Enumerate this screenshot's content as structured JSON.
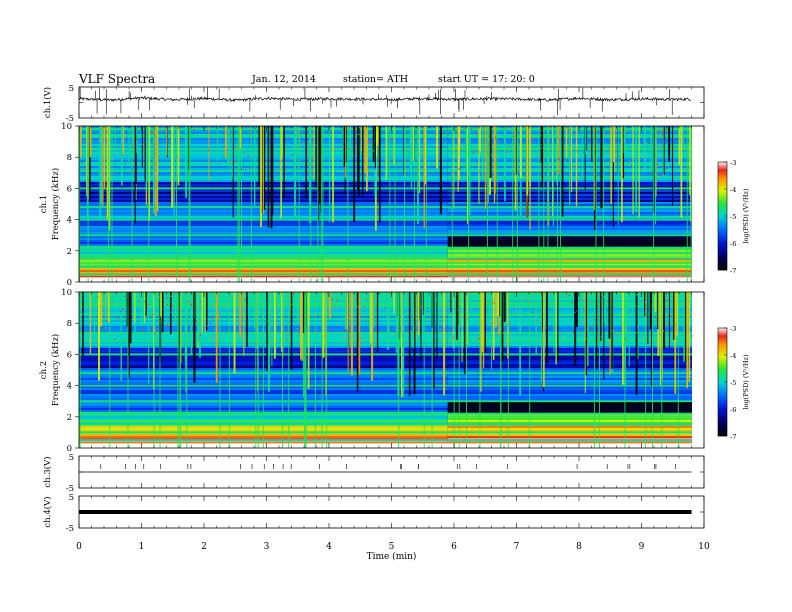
{
  "header": {
    "title": "VLF  Spectra",
    "date": "Jan. 12, 2014",
    "station": "station= ATH",
    "start": "start  UT  =   17: 20: 0"
  },
  "chart_data": [
    {
      "type": "line",
      "panel": "ch1-waveform",
      "ylabel": "ch.1(V)",
      "ylim": [
        -5,
        5
      ],
      "yticks": [
        "5",
        "-5"
      ],
      "x": [
        0,
        0.5,
        1,
        1.5,
        2,
        2.5,
        3,
        3.5,
        4,
        4.5,
        5,
        5.5,
        6,
        6.5,
        7,
        7.5,
        8,
        8.5,
        9,
        9.5,
        9.8
      ],
      "y": [
        1.2,
        0.8,
        1.5,
        0.9,
        1.3,
        0.7,
        1.4,
        1.0,
        1.2,
        1.1,
        0.9,
        1.3,
        1.0,
        1.2,
        1.1,
        0.8,
        1.4,
        0.9,
        1.2,
        1.0,
        1.1
      ]
    },
    {
      "type": "heatmap",
      "panel": "ch1-spectrogram",
      "ylabel": "ch.1\nFrequency  (kHz)",
      "ylim": [
        0,
        10
      ],
      "yticks": [
        "0",
        "2",
        "4",
        "6",
        "8",
        "10"
      ],
      "xlim": [
        0,
        9.8
      ],
      "colorbar": {
        "label": "log(PSD) (V²/Hz)",
        "range": [
          -7,
          -3
        ],
        "ticks": [
          "-3",
          "-4",
          "-5",
          "-6",
          "-7"
        ]
      },
      "regime_change_min": 5.9,
      "bands_kHz": [
        0.5,
        1.0,
        1.5,
        2.2,
        3.0,
        4.0,
        4.8,
        6.0
      ]
    },
    {
      "type": "heatmap",
      "panel": "ch2-spectrogram",
      "ylabel": "ch.2\nFrequency  (kHz)",
      "ylim": [
        0,
        10
      ],
      "yticks": [
        "0",
        "2",
        "4",
        "6",
        "8",
        "10"
      ],
      "xlim": [
        0,
        9.8
      ],
      "colorbar": {
        "label": "log(PSD) (V²/Hz)",
        "range": [
          -7,
          -3
        ],
        "ticks": [
          "-3",
          "-4",
          "-5",
          "-6",
          "-7"
        ]
      },
      "regime_change_min": 5.9,
      "bands_kHz": [
        0.5,
        1.0,
        1.5,
        2.2,
        3.0,
        4.0,
        4.8,
        6.0
      ]
    },
    {
      "type": "line",
      "panel": "ch3-waveform",
      "ylabel": "ch.3(V)",
      "ylim": [
        -5,
        5
      ],
      "yticks": [
        "5",
        "-5"
      ],
      "x": [
        0,
        9.8
      ],
      "y": [
        0,
        0
      ]
    },
    {
      "type": "line",
      "panel": "ch4-waveform",
      "ylabel": "ch.4(V)",
      "ylim": [
        -5,
        5
      ],
      "yticks": [
        "5",
        "-5"
      ],
      "x": [
        0,
        9.8
      ],
      "y": [
        0,
        0
      ]
    }
  ],
  "xaxis": {
    "label": "Time  (min)",
    "xlim": [
      0,
      10
    ],
    "ticks": [
      "0",
      "1",
      "2",
      "3",
      "4",
      "5",
      "6",
      "7",
      "8",
      "9",
      "10"
    ]
  }
}
